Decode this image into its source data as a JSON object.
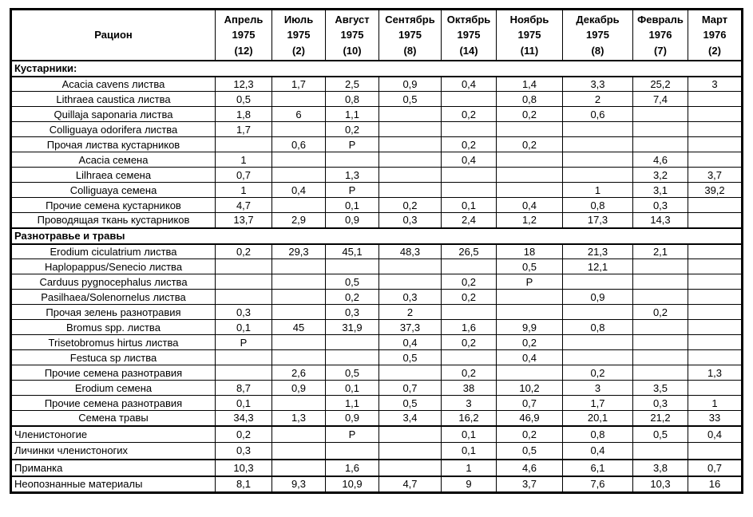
{
  "table": {
    "header": {
      "ration_label": "Рацион",
      "columns": [
        {
          "month": "Апрель",
          "year": "1975",
          "count": "(12)"
        },
        {
          "month": "Июль",
          "year": "1975",
          "count": "(2)"
        },
        {
          "month": "Август",
          "year": "1975",
          "count": "(10)"
        },
        {
          "month": "Сентябрь",
          "year": "1975",
          "count": "(8)"
        },
        {
          "month": "Октябрь",
          "year": "1975",
          "count": "(14)"
        },
        {
          "month": "Ноябрь",
          "year": "1975",
          "count": "(11)"
        },
        {
          "month": "Декабрь",
          "year": "1975",
          "count": "(8)"
        },
        {
          "month": "Февраль",
          "year": "1976",
          "count": "(7)"
        },
        {
          "month": "Март",
          "year": "1976",
          "count": "(2)"
        }
      ]
    },
    "sections": [
      {
        "title": "Кустарники:",
        "rows": [
          {
            "label": "Acacia cavens листва",
            "values": [
              "12,3",
              "1,7",
              "2,5",
              "0,9",
              "0,4",
              "1,4",
              "3,3",
              "25,2",
              "3"
            ]
          },
          {
            "label": "Lithraea caustica листва",
            "values": [
              "0,5",
              "",
              "0,8",
              "0,5",
              "",
              "0,8",
              "2",
              "7,4",
              ""
            ]
          },
          {
            "label": "Quillaja saponaria листва",
            "values": [
              "1,8",
              "6",
              "1,1",
              "",
              "0,2",
              "0,2",
              "0,6",
              "",
              ""
            ]
          },
          {
            "label": "Colliguaya odorifera листва",
            "values": [
              "1,7",
              "",
              "0,2",
              "",
              "",
              "",
              "",
              "",
              ""
            ]
          },
          {
            "label": "Прочая листва кустарников",
            "values": [
              "",
              "0,6",
              "P",
              "",
              "0,2",
              "0,2",
              "",
              "",
              ""
            ]
          },
          {
            "label": "Acacia семена",
            "values": [
              "1",
              "",
              "",
              "",
              "0,4",
              "",
              "",
              "4,6",
              ""
            ]
          },
          {
            "label": "Lilhraea семена",
            "values": [
              "0,7",
              "",
              "1,3",
              "",
              "",
              "",
              "",
              "3,2",
              "3,7"
            ]
          },
          {
            "label": "Colliguaya семена",
            "values": [
              "1",
              "0,4",
              "P",
              "",
              "",
              "",
              "1",
              "3,1",
              "39,2"
            ]
          },
          {
            "label": "Прочие семена кустарников",
            "values": [
              "4,7",
              "",
              "0,1",
              "0,2",
              "0,1",
              "0,4",
              "0,8",
              "0,3",
              ""
            ]
          },
          {
            "label": "Проводящая ткань кустарников",
            "values": [
              "13,7",
              "2,9",
              "0,9",
              "0,3",
              "2,4",
              "1,2",
              "17,3",
              "14,3",
              ""
            ]
          }
        ]
      },
      {
        "title": "Разнотравье и травы",
        "rows": [
          {
            "label": "Erodium ciculatrium листва",
            "values": [
              "0,2",
              "29,3",
              "45,1",
              "48,3",
              "26,5",
              "18",
              "21,3",
              "2,1",
              ""
            ]
          },
          {
            "label": "Haplopappus/Senecio листва",
            "values": [
              "",
              "",
              "",
              "",
              "",
              "0,5",
              "12,1",
              "",
              ""
            ]
          },
          {
            "label": "Carduus pygnocephalus листва",
            "values": [
              "",
              "",
              "0,5",
              "",
              "0,2",
              "P",
              "",
              "",
              ""
            ]
          },
          {
            "label": "Pasilhaea/Solenornelus листва",
            "values": [
              "",
              "",
              "0,2",
              "0,3",
              "0,2",
              "",
              "0,9",
              "",
              ""
            ]
          },
          {
            "label": "Прочая зелень разнотравия",
            "values": [
              "0,3",
              "",
              "0,3",
              "2",
              "",
              "",
              "",
              "0,2",
              ""
            ]
          },
          {
            "label": "Bromus spp. листва",
            "values": [
              "0,1",
              "45",
              "31,9",
              "37,3",
              "1,6",
              "9,9",
              "0,8",
              "",
              ""
            ]
          },
          {
            "label": "Trisetobromus hirtus листва",
            "values": [
              "P",
              "",
              "",
              "0,4",
              "0,2",
              "0,2",
              "",
              "",
              ""
            ]
          },
          {
            "label": "Festuca sp листва",
            "values": [
              "",
              "",
              "",
              "0,5",
              "",
              "0,4",
              "",
              "",
              ""
            ]
          },
          {
            "label": "Прочие семена разнотравия",
            "values": [
              "",
              "2,6",
              "0,5",
              "",
              "0,2",
              "",
              "0,2",
              "",
              "1,3"
            ]
          },
          {
            "label": "Erodium семена",
            "values": [
              "8,7",
              "0,9",
              "0,1",
              "0,7",
              "38",
              "10,2",
              "3",
              "3,5",
              ""
            ]
          },
          {
            "label": "Прочие семена разнотравия",
            "values": [
              "0,1",
              "",
              "1,1",
              "0,5",
              "3",
              "0,7",
              "1,7",
              "0,3",
              "1"
            ]
          },
          {
            "label": "Семена травы",
            "values": [
              "34,3",
              "1,3",
              "0,9",
              "3,4",
              "16,2",
              "46,9",
              "20,1",
              "21,2",
              "33"
            ]
          }
        ]
      }
    ],
    "footer_rows": [
      {
        "label": "Членистоногие",
        "thick_top": true,
        "values": [
          "0,2",
          "",
          "P",
          "",
          "0,1",
          "0,2",
          "0,8",
          "0,5",
          "0,4"
        ]
      },
      {
        "label": "Личинки членистоногих",
        "thick_top": false,
        "values": [
          "0,3",
          "",
          "",
          "",
          "0,1",
          "0,5",
          "0,4",
          "",
          ""
        ]
      },
      {
        "label": "Приманка",
        "thick_top": true,
        "values": [
          "10,3",
          "",
          "1,6",
          "",
          "1",
          "4,6",
          "6,1",
          "3,8",
          "0,7"
        ]
      },
      {
        "label": "Неопознанные материалы",
        "thick_top": true,
        "values": [
          "8,1",
          "9,3",
          "10,9",
          "4,7",
          "9",
          "3,7",
          "7,6",
          "10,3",
          "16"
        ]
      }
    ]
  }
}
